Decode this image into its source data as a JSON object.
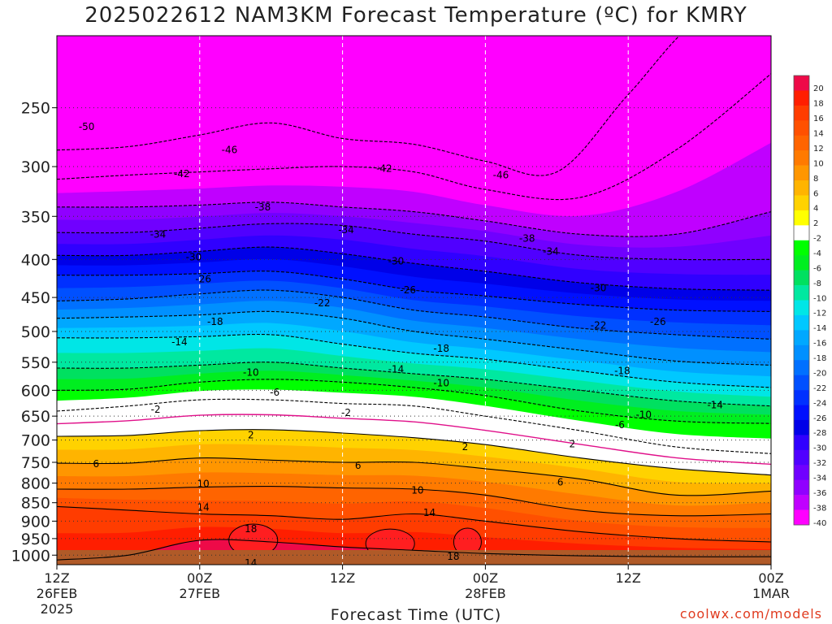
{
  "chart_data": {
    "type": "heatmap",
    "title": "2025022612 NAM3KM Forecast Temperature (ºC) for KMRY",
    "xlabel": "Forecast Time (UTC)",
    "ylabel": "",
    "x_ticks": [
      {
        "hours": 0,
        "lines": [
          "12Z",
          "26FEB",
          "2025"
        ]
      },
      {
        "hours": 12,
        "lines": [
          "00Z",
          "27FEB"
        ]
      },
      {
        "hours": 24,
        "lines": [
          "12Z"
        ]
      },
      {
        "hours": 36,
        "lines": [
          "00Z",
          "28FEB"
        ]
      },
      {
        "hours": 48,
        "lines": [
          "12Z"
        ]
      },
      {
        "hours": 60,
        "lines": [
          "00Z",
          "1MAR"
        ]
      }
    ],
    "xlim_hours": [
      0,
      60
    ],
    "y_ticks": [
      250,
      300,
      350,
      400,
      450,
      500,
      550,
      600,
      650,
      700,
      750,
      800,
      850,
      900,
      950,
      1000
    ],
    "ylim_hpa": [
      1030,
      200
    ],
    "y_scale": "log",
    "colorbar": {
      "ticks": [
        20,
        18,
        16,
        14,
        12,
        10,
        8,
        6,
        4,
        2,
        -2,
        -4,
        -6,
        -8,
        -10,
        -12,
        -14,
        -16,
        -18,
        -20,
        -22,
        -24,
        -26,
        -28,
        -30,
        -32,
        -34,
        -36,
        -38,
        -40
      ],
      "colors": [
        "#ee0a48",
        "#ff1e00",
        "#ff3c00",
        "#ff5000",
        "#ff6400",
        "#ff7a00",
        "#ff9600",
        "#ffb400",
        "#ffd200",
        "#ffff00",
        "#ffffff",
        "#00ff00",
        "#00ee20",
        "#00e060",
        "#00e8a0",
        "#00e6e6",
        "#00c8ff",
        "#00a8ff",
        "#0090ff",
        "#0070ff",
        "#0050ff",
        "#0030ff",
        "#0010ff",
        "#0000e8",
        "#3000ff",
        "#5000ff",
        "#7000ff",
        "#9000ff",
        "#c000ff",
        "#ff00ff"
      ]
    },
    "isotherms": [
      {
        "value": 18,
        "pts": [
          [
            0,
            1015
          ],
          [
            6,
            1000
          ],
          [
            12,
            955
          ],
          [
            18,
            960
          ],
          [
            24,
            975
          ],
          [
            30,
            985
          ],
          [
            36,
            995
          ],
          [
            44,
            1002
          ],
          [
            52,
            1005
          ],
          [
            60,
            1005
          ]
        ]
      },
      {
        "value": 14,
        "pts": [
          [
            0,
            860
          ],
          [
            6,
            870
          ],
          [
            12,
            880
          ],
          [
            18,
            885
          ],
          [
            24,
            895
          ],
          [
            30,
            880
          ],
          [
            36,
            900
          ],
          [
            44,
            930
          ],
          [
            52,
            950
          ],
          [
            60,
            960
          ]
        ]
      },
      {
        "value": 10,
        "pts": [
          [
            0,
            815
          ],
          [
            6,
            815
          ],
          [
            12,
            810
          ],
          [
            18,
            808
          ],
          [
            24,
            812
          ],
          [
            30,
            815
          ],
          [
            36,
            830
          ],
          [
            44,
            870
          ],
          [
            52,
            885
          ],
          [
            60,
            880
          ]
        ]
      },
      {
        "value": 6,
        "pts": [
          [
            0,
            752
          ],
          [
            6,
            752
          ],
          [
            12,
            740
          ],
          [
            18,
            745
          ],
          [
            24,
            750
          ],
          [
            30,
            750
          ],
          [
            36,
            765
          ],
          [
            44,
            790
          ],
          [
            52,
            830
          ],
          [
            60,
            820
          ]
        ]
      },
      {
        "value": 2,
        "pts": [
          [
            0,
            692
          ],
          [
            6,
            690
          ],
          [
            12,
            680
          ],
          [
            18,
            678
          ],
          [
            24,
            685
          ],
          [
            30,
            695
          ],
          [
            36,
            710
          ],
          [
            44,
            740
          ],
          [
            52,
            765
          ],
          [
            60,
            780
          ]
        ]
      },
      {
        "value": -2,
        "pts": [
          [
            0,
            640
          ],
          [
            6,
            630
          ],
          [
            12,
            618
          ],
          [
            18,
            618
          ],
          [
            24,
            625
          ],
          [
            30,
            630
          ],
          [
            36,
            650
          ],
          [
            44,
            680
          ],
          [
            52,
            715
          ],
          [
            60,
            730
          ]
        ]
      },
      {
        "value": -6,
        "pts": [
          [
            0,
            600
          ],
          [
            6,
            598
          ],
          [
            12,
            585
          ],
          [
            18,
            580
          ],
          [
            24,
            585
          ],
          [
            30,
            595
          ],
          [
            36,
            610
          ],
          [
            44,
            640
          ],
          [
            52,
            660
          ],
          [
            60,
            665
          ]
        ]
      },
      {
        "value": -10,
        "pts": [
          [
            0,
            560
          ],
          [
            6,
            560
          ],
          [
            12,
            555
          ],
          [
            18,
            550
          ],
          [
            24,
            560
          ],
          [
            30,
            570
          ],
          [
            36,
            580
          ],
          [
            44,
            600
          ],
          [
            52,
            620
          ],
          [
            60,
            630
          ]
        ]
      },
      {
        "value": -14,
        "pts": [
          [
            0,
            510
          ],
          [
            6,
            510
          ],
          [
            12,
            508
          ],
          [
            18,
            505
          ],
          [
            24,
            520
          ],
          [
            30,
            535
          ],
          [
            36,
            545
          ],
          [
            44,
            565
          ],
          [
            52,
            585
          ],
          [
            60,
            595
          ]
        ]
      },
      {
        "value": -18,
        "pts": [
          [
            0,
            480
          ],
          [
            6,
            478
          ],
          [
            12,
            475
          ],
          [
            18,
            470
          ],
          [
            24,
            480
          ],
          [
            30,
            500
          ],
          [
            36,
            512
          ],
          [
            44,
            530
          ],
          [
            52,
            548
          ],
          [
            60,
            555
          ]
        ]
      },
      {
        "value": -22,
        "pts": [
          [
            0,
            455
          ],
          [
            6,
            452
          ],
          [
            12,
            445
          ],
          [
            18,
            440
          ],
          [
            24,
            450
          ],
          [
            30,
            468
          ],
          [
            36,
            478
          ],
          [
            44,
            495
          ],
          [
            52,
            505
          ],
          [
            60,
            512
          ]
        ]
      },
      {
        "value": -26,
        "pts": [
          [
            0,
            420
          ],
          [
            6,
            420
          ],
          [
            12,
            418
          ],
          [
            18,
            415
          ],
          [
            24,
            425
          ],
          [
            30,
            440
          ],
          [
            36,
            448
          ],
          [
            44,
            460
          ],
          [
            52,
            468
          ],
          [
            60,
            470
          ]
        ]
      },
      {
        "value": -30,
        "pts": [
          [
            0,
            395
          ],
          [
            6,
            395
          ],
          [
            12,
            390
          ],
          [
            18,
            385
          ],
          [
            24,
            393
          ],
          [
            30,
            405
          ],
          [
            36,
            415
          ],
          [
            44,
            430
          ],
          [
            52,
            438
          ],
          [
            60,
            440
          ]
        ]
      },
      {
        "value": -34,
        "pts": [
          [
            0,
            368
          ],
          [
            6,
            368
          ],
          [
            12,
            363
          ],
          [
            18,
            358
          ],
          [
            24,
            360
          ],
          [
            30,
            370
          ],
          [
            36,
            378
          ],
          [
            44,
            395
          ],
          [
            52,
            400
          ],
          [
            60,
            400
          ]
        ]
      },
      {
        "value": -38,
        "pts": [
          [
            0,
            340
          ],
          [
            6,
            340
          ],
          [
            12,
            338
          ],
          [
            18,
            335
          ],
          [
            24,
            340
          ],
          [
            30,
            345
          ],
          [
            36,
            355
          ],
          [
            44,
            370
          ],
          [
            52,
            370
          ],
          [
            60,
            345
          ]
        ]
      },
      {
        "value": -42,
        "pts": [
          [
            0,
            312
          ],
          [
            6,
            308
          ],
          [
            12,
            305
          ],
          [
            18,
            302
          ],
          [
            24,
            300
          ],
          [
            30,
            305
          ],
          [
            36,
            322
          ],
          [
            44,
            330
          ],
          [
            52,
            285
          ],
          [
            60,
            225
          ]
        ]
      },
      {
        "value": -46,
        "pts": [
          [
            0,
            285
          ],
          [
            6,
            282
          ],
          [
            12,
            272
          ],
          [
            18,
            262
          ],
          [
            24,
            275
          ],
          [
            30,
            280
          ],
          [
            36,
            295
          ],
          [
            42,
            305
          ],
          [
            48,
            240
          ],
          [
            54,
            190
          ],
          [
            60,
            185
          ]
        ]
      }
    ],
    "isotherm_labels": [
      {
        "text": "-50",
        "hours": 2.5,
        "hpa": 265
      },
      {
        "text": "-46",
        "hours": 14.5,
        "hpa": 285
      },
      {
        "text": "-42",
        "hours": 10.5,
        "hpa": 307
      },
      {
        "text": "-42",
        "hours": 27.5,
        "hpa": 302
      },
      {
        "text": "-46",
        "hours": 37.3,
        "hpa": 308
      },
      {
        "text": "-38",
        "hours": 17.3,
        "hpa": 340
      },
      {
        "text": "-38",
        "hours": 39.5,
        "hpa": 375
      },
      {
        "text": "-34",
        "hours": 8.5,
        "hpa": 370
      },
      {
        "text": "-34",
        "hours": 24.3,
        "hpa": 365
      },
      {
        "text": "-34",
        "hours": 41.5,
        "hpa": 390
      },
      {
        "text": "-30",
        "hours": 11.5,
        "hpa": 397
      },
      {
        "text": "-30",
        "hours": 28.5,
        "hpa": 402
      },
      {
        "text": "-30",
        "hours": 45.5,
        "hpa": 437
      },
      {
        "text": "-26",
        "hours": 12.3,
        "hpa": 425
      },
      {
        "text": "-26",
        "hours": 29.5,
        "hpa": 440
      },
      {
        "text": "-26",
        "hours": 50.5,
        "hpa": 485
      },
      {
        "text": "-22",
        "hours": 22.3,
        "hpa": 458
      },
      {
        "text": "-22",
        "hours": 45.5,
        "hpa": 491
      },
      {
        "text": "-18",
        "hours": 13.3,
        "hpa": 485
      },
      {
        "text": "-18",
        "hours": 32.3,
        "hpa": 527
      },
      {
        "text": "-18",
        "hours": 47.5,
        "hpa": 565
      },
      {
        "text": "-14",
        "hours": 10.3,
        "hpa": 517
      },
      {
        "text": "-14",
        "hours": 28.5,
        "hpa": 562
      },
      {
        "text": "-14",
        "hours": 55.3,
        "hpa": 628
      },
      {
        "text": "-10",
        "hours": 16.3,
        "hpa": 568
      },
      {
        "text": "-10",
        "hours": 32.3,
        "hpa": 587
      },
      {
        "text": "-10",
        "hours": 49.3,
        "hpa": 647
      },
      {
        "text": "-6",
        "hours": 18.3,
        "hpa": 604
      },
      {
        "text": "-6",
        "hours": 47.3,
        "hpa": 668
      },
      {
        "text": "-2",
        "hours": 8.3,
        "hpa": 637
      },
      {
        "text": "-2",
        "hours": 24.3,
        "hpa": 643
      },
      {
        "text": "2",
        "hours": 16.3,
        "hpa": 689
      },
      {
        "text": "2",
        "hours": 34.3,
        "hpa": 715
      },
      {
        "text": "2",
        "hours": 43.3,
        "hpa": 709
      },
      {
        "text": "6",
        "hours": 3.3,
        "hpa": 754
      },
      {
        "text": "6",
        "hours": 25.3,
        "hpa": 758
      },
      {
        "text": "6",
        "hours": 42.3,
        "hpa": 798
      },
      {
        "text": "10",
        "hours": 12.3,
        "hpa": 802
      },
      {
        "text": "10",
        "hours": 30.3,
        "hpa": 818
      },
      {
        "text": "14",
        "hours": 12.3,
        "hpa": 862
      },
      {
        "text": "14",
        "hours": 31.3,
        "hpa": 877
      },
      {
        "text": "18",
        "hours": 16.3,
        "hpa": 922
      },
      {
        "text": "18",
        "hours": 33.3,
        "hpa": 1005
      },
      {
        "text": "14",
        "hours": 16.3,
        "hpa": 1025
      }
    ]
  },
  "credit": "coolwx.com/models"
}
